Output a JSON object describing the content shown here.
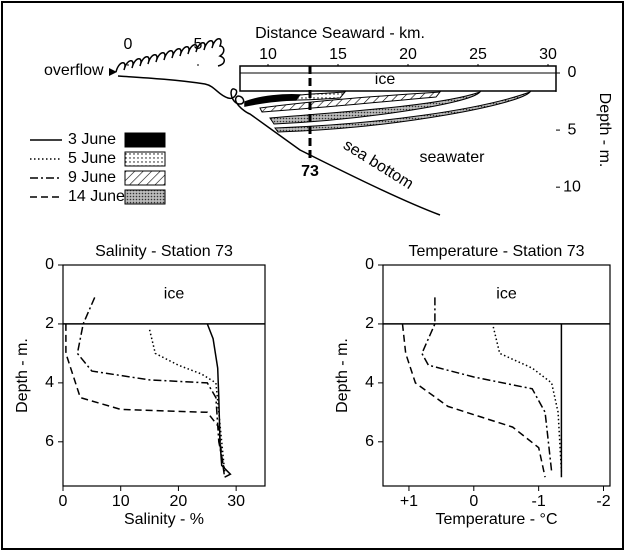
{
  "chart_data": [
    {
      "type": "diagram",
      "xlabel": "Distance Seaward - km.",
      "ylabel": "Depth - m.",
      "xlim": [
        0,
        30
      ],
      "xticks": [
        0,
        5,
        10,
        15,
        20,
        25,
        30
      ],
      "ylim": [
        0,
        12
      ],
      "yticks": [
        0,
        5,
        10
      ],
      "annotations": [
        "overflow",
        "ice",
        "seawater",
        "sea bottom"
      ],
      "station_label": "73",
      "legend": [
        {
          "name": "3 June",
          "dash": "solid",
          "fill": "solid"
        },
        {
          "name": "5 June",
          "dash": "dotted",
          "fill": "dots"
        },
        {
          "name": "9 June",
          "dash": "dashdot",
          "fill": "hatch"
        },
        {
          "name": "14 June",
          "dash": "dashed",
          "fill": "stipple"
        }
      ]
    },
    {
      "type": "line",
      "title": "Salinity - Station 73",
      "xlabel": "Salinity - %",
      "ylabel": "Depth - m.",
      "xlim": [
        0,
        35
      ],
      "xticks": [
        0,
        10,
        20,
        30
      ],
      "ylim": [
        0,
        7.5
      ],
      "yticks": [
        0,
        2,
        4,
        6
      ],
      "ice_depth": 2,
      "annotation": "ice",
      "series": [
        {
          "dash": "solid",
          "x": [
            25,
            26,
            26.8,
            27,
            27.2,
            27.5,
            28.5,
            29,
            28
          ],
          "values": [
            2,
            2.5,
            3.5,
            4.5,
            6,
            6.8,
            7,
            7.1,
            7.2
          ]
        },
        {
          "dash": "dotted",
          "x": [
            15,
            16,
            20,
            24,
            26.5,
            27,
            27.5,
            28
          ],
          "values": [
            2.2,
            3,
            3.4,
            3.7,
            4,
            5,
            6,
            7
          ]
        },
        {
          "dash": "dashdot",
          "x": [
            5.5,
            3.5,
            2.5,
            5,
            15,
            25,
            26.5,
            27,
            28
          ],
          "values": [
            1.1,
            2,
            3,
            3.6,
            3.9,
            4,
            4.5,
            6,
            7
          ]
        },
        {
          "dash": "dashed",
          "x": [
            0.5,
            0.5,
            3,
            10,
            25,
            27,
            27.5,
            28
          ],
          "values": [
            2,
            3,
            4.5,
            4.9,
            5,
            5.5,
            6.5,
            7.2
          ]
        }
      ]
    },
    {
      "type": "line",
      "title": "Temperature - Station 73",
      "xlabel": "Temperature - °C",
      "ylabel": "Depth - m.",
      "xlim": [
        1.4,
        -2.1
      ],
      "xticks": [
        {
          "value": 1,
          "label": "+1"
        },
        0,
        -1,
        -2
      ],
      "ylim": [
        0,
        7.5
      ],
      "yticks": [
        0,
        2,
        4,
        6
      ],
      "ice_depth": 2,
      "annotation": "ice",
      "series": [
        {
          "dash": "solid",
          "x": [
            -1.35,
            -1.35
          ],
          "values": [
            2,
            7.2
          ]
        },
        {
          "dash": "dotted",
          "x": [
            -0.3,
            -0.4,
            -0.9,
            -1.2,
            -1.3,
            -1.35
          ],
          "values": [
            2.1,
            3,
            3.5,
            4,
            5,
            7
          ]
        },
        {
          "dash": "dashdot",
          "x": [
            0.6,
            0.6,
            0.8,
            0.7,
            0,
            -0.9,
            -1.1,
            -1.2
          ],
          "values": [
            1.1,
            2,
            3,
            3.4,
            3.8,
            4.2,
            5,
            7
          ]
        },
        {
          "dash": "dashed",
          "x": [
            1.1,
            1.05,
            0.9,
            0.4,
            -0.6,
            -1,
            -1.1
          ],
          "values": [
            2,
            3,
            4,
            4.8,
            5.5,
            6.2,
            7.2
          ]
        }
      ]
    }
  ]
}
